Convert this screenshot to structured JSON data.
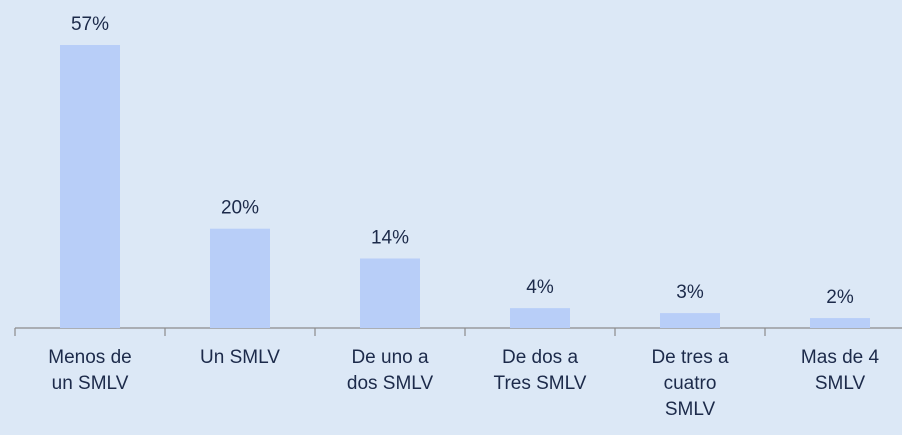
{
  "chart_data": {
    "type": "bar",
    "categories": [
      "Menos de\nun SMLV",
      "Un SMLV",
      "De uno a\ndos SMLV",
      "De dos a\nTres SMLV",
      "De tres a\ncuatro\nSMLV",
      "Mas de 4\nSMLV"
    ],
    "values": [
      57,
      20,
      14,
      4,
      3,
      2
    ],
    "value_labels": [
      "57%",
      "20%",
      "14%",
      "4%",
      "3%",
      "2%"
    ],
    "color": "#b8cef8"
  }
}
